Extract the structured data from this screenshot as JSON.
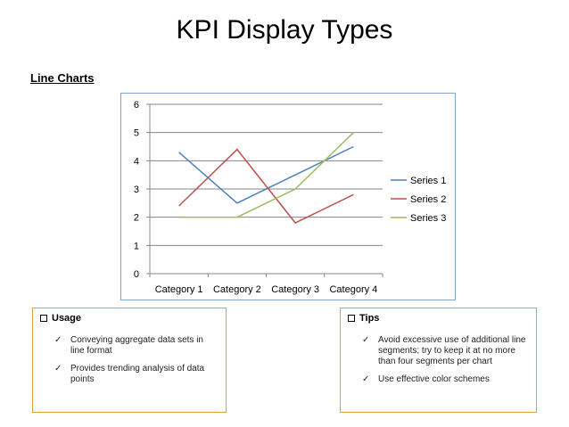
{
  "slide": {
    "title": "KPI Display Types",
    "section_heading": "Line Charts"
  },
  "chart_data": {
    "type": "line",
    "categories": [
      "Category 1",
      "Category 2",
      "Category 3",
      "Category 4"
    ],
    "series": [
      {
        "name": "Series 1",
        "values": [
          4.3,
          2.5,
          3.5,
          4.5
        ],
        "color": "#4f81bd"
      },
      {
        "name": "Series 2",
        "values": [
          2.4,
          4.4,
          1.8,
          2.8
        ],
        "color": "#c0504d"
      },
      {
        "name": "Series 3",
        "values": [
          2,
          2,
          3,
          5
        ],
        "color": "#9bbb59"
      }
    ],
    "y_ticks": [
      "0",
      "1",
      "2",
      "3",
      "4",
      "5",
      "6"
    ],
    "ylim": [
      0,
      6
    ],
    "grid": "major horizontal gridlines",
    "legend": "right",
    "title": "",
    "xlabel": "",
    "ylabel": ""
  },
  "usage_box": {
    "heading": "Usage",
    "items": [
      "Conveying aggregate data sets in line format",
      "Provides trending analysis of data points"
    ]
  },
  "tips_box": {
    "heading": "Tips",
    "items": [
      "Avoid excessive use of additional line segments; try to keep it at no more than four segments per chart",
      "Use effective color schemes"
    ]
  },
  "icons": {
    "heading_bullet": "square-bullet-icon",
    "item_bullet": "checkmark-icon"
  },
  "colors": {
    "box_border": "#e0a241",
    "chart_border": "#7fa9cc"
  }
}
